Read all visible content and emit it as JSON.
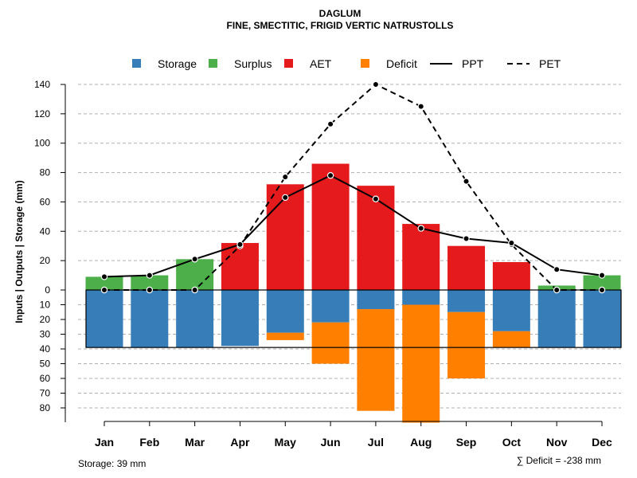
{
  "chart_data": {
    "type": "bar",
    "title": "DAGLUM",
    "subtitle": "FINE, SMECTITIC, FRIGID VERTIC NATRUSTOLLS",
    "ylabel": "Inputs | Outputs | Storage    (mm)",
    "categories": [
      "Jan",
      "Feb",
      "Mar",
      "Apr",
      "May",
      "Jun",
      "Jul",
      "Aug",
      "Sep",
      "Oct",
      "Nov",
      "Dec"
    ],
    "ylim_positive": [
      0,
      140
    ],
    "ylim_negative": [
      0,
      80
    ],
    "yticks_positive": [
      0,
      20,
      40,
      60,
      80,
      100,
      120,
      140
    ],
    "yticks_negative": [
      10,
      20,
      30,
      40,
      50,
      60,
      70,
      80
    ],
    "grid": true,
    "legend_position": "top",
    "storage_capacity": 39,
    "series": [
      {
        "name": "Surplus",
        "color": "#4DAF4A",
        "direction": "up",
        "values": [
          9,
          10,
          21,
          0,
          0,
          0,
          0,
          0,
          0,
          0,
          3,
          10
        ]
      },
      {
        "name": "AET",
        "color": "#E41A1C",
        "direction": "up",
        "values": [
          0,
          0,
          0,
          32,
          72,
          86,
          71,
          45,
          30,
          19,
          0,
          0
        ]
      },
      {
        "name": "Storage",
        "color": "#377EB8",
        "direction": "down",
        "values": [
          39,
          39,
          39,
          38,
          29,
          22,
          13,
          10,
          15,
          28,
          39,
          39
        ]
      },
      {
        "name": "Deficit",
        "color": "#FF7F00",
        "direction": "down",
        "values": [
          0,
          0,
          0,
          0,
          5,
          28,
          69,
          80,
          45,
          11,
          0,
          0
        ]
      },
      {
        "name": "PPT",
        "color": "#000000",
        "style": "solid",
        "values": [
          9,
          10,
          21,
          31,
          63,
          78,
          62,
          42,
          35,
          32,
          14,
          10
        ]
      },
      {
        "name": "PET",
        "color": "#000000",
        "style": "dashed",
        "values": [
          0,
          0,
          0,
          30,
          77,
          113,
          140,
          125,
          74,
          31,
          0,
          0
        ]
      }
    ],
    "legend": [
      "Storage",
      "Surplus",
      "AET",
      "Deficit",
      "PPT",
      "PET"
    ],
    "footer_left": "Storage: 39 mm",
    "footer_right": "∑ Deficit = -238 mm"
  }
}
